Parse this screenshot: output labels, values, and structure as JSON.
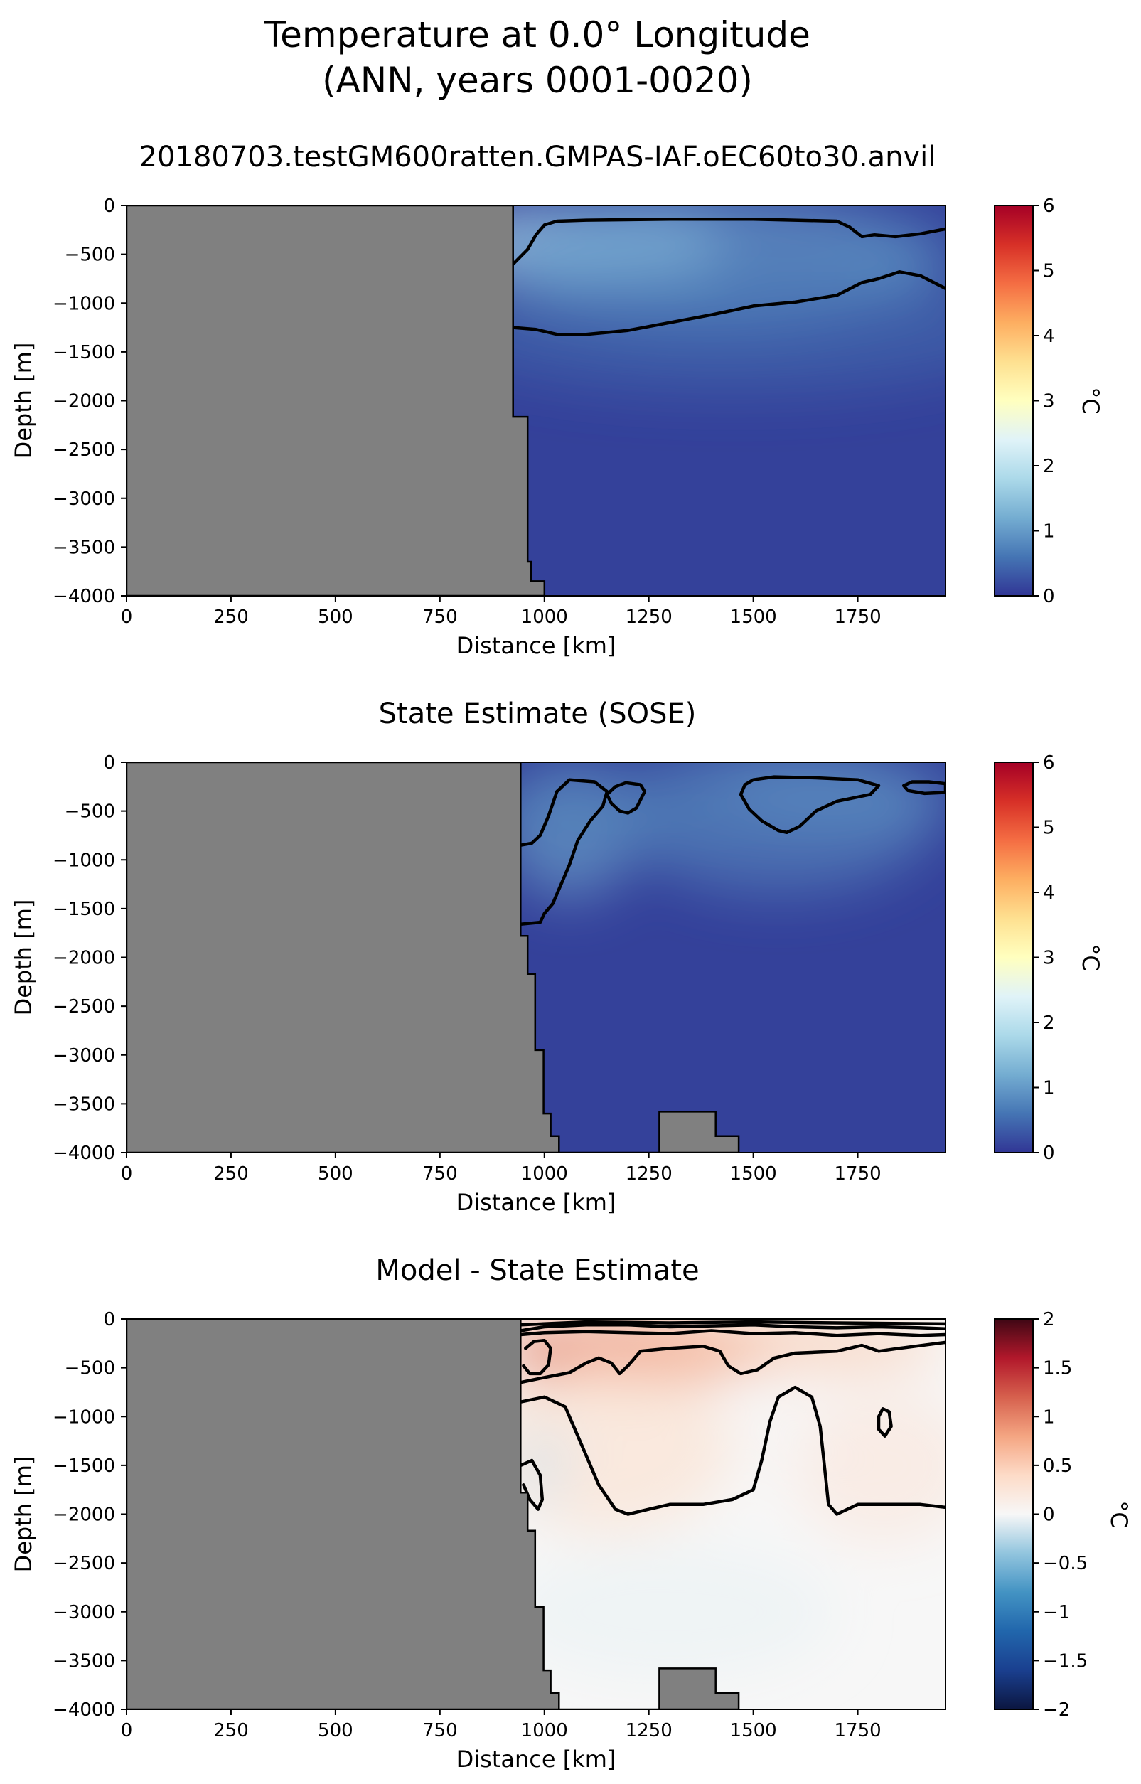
{
  "figure": {
    "title_line1": "Temperature at 0.0° Longitude",
    "title_line2": "(ANN, years 0001-0020)"
  },
  "chart_data": [
    {
      "type": "heatmap",
      "title": "20180703.testGM600ratten.GMPAS-IAF.oEC60to30.anvil",
      "xlabel": "Distance [km]",
      "ylabel": "Depth [m]",
      "xlim": [
        0,
        1960
      ],
      "ylim": [
        -4000,
        0
      ],
      "xticks": [
        0,
        250,
        500,
        750,
        1000,
        1250,
        1500,
        1750
      ],
      "yticks": [
        0,
        -500,
        -1000,
        -1500,
        -2000,
        -2500,
        -3000,
        -3500,
        -4000
      ],
      "colormap": "RdYlBu_r",
      "colorbar": {
        "label": "°C",
        "min": 0,
        "max": 6,
        "ticks": [
          0,
          1,
          2,
          3,
          4,
          5,
          6
        ]
      },
      "land_color": "#808080",
      "bathymetry": [
        [
          925,
          -600
        ],
        [
          925,
          -2165
        ],
        [
          960,
          -2165
        ],
        [
          960,
          -3650
        ],
        [
          968,
          -3650
        ],
        [
          968,
          -3850
        ],
        [
          1000,
          -3850
        ],
        [
          1000,
          -4000
        ]
      ],
      "field_blobs": [
        {
          "x": 1100,
          "y": -400,
          "rx": 330,
          "ry": 450,
          "value": 1.9,
          "opacity": 0.75
        },
        {
          "x": 1400,
          "y": -550,
          "rx": 520,
          "ry": 700,
          "value": 1.0,
          "opacity": 0.7
        },
        {
          "x": 1450,
          "y": -1300,
          "rx": 700,
          "ry": 600,
          "value": 0.6,
          "opacity": 0.5
        },
        {
          "x": 1850,
          "y": -550,
          "rx": 150,
          "ry": 400,
          "value": 0.8,
          "opacity": 0.6
        }
      ],
      "contours": [
        [
          [
            925,
            -600
          ],
          [
            960,
            -450
          ],
          [
            980,
            -300
          ],
          [
            1000,
            -200
          ],
          [
            1030,
            -160
          ],
          [
            1100,
            -150
          ],
          [
            1300,
            -140
          ],
          [
            1500,
            -140
          ],
          [
            1700,
            -160
          ],
          [
            1730,
            -220
          ],
          [
            1760,
            -320
          ],
          [
            1790,
            -300
          ],
          [
            1840,
            -320
          ],
          [
            1900,
            -290
          ],
          [
            1960,
            -240
          ]
        ],
        [
          [
            925,
            -1250
          ],
          [
            980,
            -1270
          ],
          [
            1030,
            -1320
          ],
          [
            1100,
            -1320
          ],
          [
            1200,
            -1280
          ],
          [
            1300,
            -1200
          ],
          [
            1400,
            -1120
          ],
          [
            1500,
            -1030
          ],
          [
            1600,
            -990
          ],
          [
            1700,
            -920
          ],
          [
            1760,
            -790
          ],
          [
            1800,
            -750
          ],
          [
            1850,
            -680
          ],
          [
            1900,
            -720
          ],
          [
            1960,
            -850
          ]
        ]
      ]
    },
    {
      "type": "heatmap",
      "title": "State Estimate (SOSE)",
      "xlabel": "Distance [km]",
      "ylabel": "Depth [m]",
      "xlim": [
        0,
        1960
      ],
      "ylim": [
        -4000,
        0
      ],
      "xticks": [
        0,
        250,
        500,
        750,
        1000,
        1250,
        1500,
        1750
      ],
      "yticks": [
        0,
        -500,
        -1000,
        -1500,
        -2000,
        -2500,
        -3000,
        -3500,
        -4000
      ],
      "colormap": "RdYlBu_r",
      "colorbar": {
        "label": "°C",
        "min": 0,
        "max": 6,
        "ticks": [
          0,
          1,
          2,
          3,
          4,
          5,
          6
        ]
      },
      "land_color": "#808080",
      "bathymetry": [
        [
          943,
          -1780
        ],
        [
          960,
          -1780
        ],
        [
          960,
          -2170
        ],
        [
          978,
          -2170
        ],
        [
          978,
          -2950
        ],
        [
          998,
          -2950
        ],
        [
          998,
          -3600
        ],
        [
          1015,
          -3600
        ],
        [
          1015,
          -3830
        ],
        [
          1035,
          -3830
        ],
        [
          1035,
          -4000
        ],
        [
          1275,
          -4000
        ],
        [
          1275,
          -3580
        ],
        [
          1410,
          -3580
        ],
        [
          1410,
          -3830
        ],
        [
          1465,
          -3830
        ],
        [
          1465,
          -4000
        ]
      ],
      "field_blobs": [
        {
          "x": 1060,
          "y": -700,
          "rx": 160,
          "ry": 700,
          "value": 1.2,
          "opacity": 0.6
        },
        {
          "x": 1560,
          "y": -550,
          "rx": 380,
          "ry": 800,
          "value": 0.9,
          "opacity": 0.55
        },
        {
          "x": 1150,
          "y": -500,
          "rx": 300,
          "ry": 500,
          "value": 0.7,
          "opacity": 0.45
        },
        {
          "x": 1700,
          "y": -350,
          "rx": 300,
          "ry": 350,
          "value": 1.0,
          "opacity": 0.5
        }
      ],
      "contours": [
        [
          [
            943,
            -850
          ],
          [
            970,
            -830
          ],
          [
            990,
            -750
          ],
          [
            1010,
            -550
          ],
          [
            1030,
            -300
          ],
          [
            1060,
            -180
          ],
          [
            1120,
            -200
          ],
          [
            1150,
            -300
          ],
          [
            1140,
            -450
          ],
          [
            1110,
            -600
          ],
          [
            1080,
            -800
          ],
          [
            1060,
            -1050
          ],
          [
            1040,
            -1250
          ],
          [
            1020,
            -1450
          ],
          [
            1000,
            -1550
          ],
          [
            990,
            -1640
          ],
          [
            943,
            -1660
          ]
        ],
        [
          [
            1170,
            -250
          ],
          [
            1195,
            -210
          ],
          [
            1230,
            -230
          ],
          [
            1240,
            -300
          ],
          [
            1220,
            -470
          ],
          [
            1200,
            -520
          ],
          [
            1180,
            -500
          ],
          [
            1160,
            -420
          ],
          [
            1150,
            -330
          ]
        ],
        [
          [
            1480,
            -230
          ],
          [
            1500,
            -180
          ],
          [
            1550,
            -150
          ],
          [
            1650,
            -160
          ],
          [
            1750,
            -180
          ],
          [
            1800,
            -240
          ],
          [
            1780,
            -330
          ],
          [
            1700,
            -400
          ],
          [
            1650,
            -500
          ],
          [
            1610,
            -660
          ],
          [
            1580,
            -720
          ],
          [
            1560,
            -700
          ],
          [
            1520,
            -600
          ],
          [
            1490,
            -480
          ],
          [
            1470,
            -330
          ]
        ],
        [
          [
            1860,
            -240
          ],
          [
            1880,
            -200
          ],
          [
            1920,
            -200
          ],
          [
            1960,
            -220
          ],
          [
            1960,
            -310
          ],
          [
            1910,
            -320
          ],
          [
            1870,
            -290
          ]
        ]
      ]
    },
    {
      "type": "heatmap",
      "title": "Model - State Estimate",
      "xlabel": "Distance [km]",
      "ylabel": "Depth [m]",
      "xlim": [
        0,
        1960
      ],
      "ylim": [
        -4000,
        0
      ],
      "xticks": [
        0,
        250,
        500,
        750,
        1000,
        1250,
        1500,
        1750
      ],
      "yticks": [
        0,
        -500,
        -1000,
        -1500,
        -2000,
        -2500,
        -3000,
        -3500,
        -4000
      ],
      "colormap": "RdBu_r",
      "colorbar": {
        "label": "°C",
        "min": -2.0,
        "max": 2.0,
        "ticks": [
          -2.0,
          -1.5,
          -1.0,
          -0.5,
          0.0,
          0.5,
          1.0,
          1.5,
          2.0
        ]
      },
      "land_color": "#808080",
      "bathymetry": [
        [
          943,
          -1780
        ],
        [
          960,
          -1780
        ],
        [
          960,
          -2170
        ],
        [
          978,
          -2170
        ],
        [
          978,
          -2950
        ],
        [
          998,
          -2950
        ],
        [
          998,
          -3600
        ],
        [
          1015,
          -3600
        ],
        [
          1015,
          -3830
        ],
        [
          1035,
          -3830
        ],
        [
          1035,
          -4000
        ],
        [
          1275,
          -4000
        ],
        [
          1275,
          -3580
        ],
        [
          1410,
          -3580
        ],
        [
          1410,
          -3830
        ],
        [
          1465,
          -3830
        ],
        [
          1465,
          -4000
        ]
      ],
      "field_blobs": [
        {
          "x": 1220,
          "y": -300,
          "rx": 330,
          "ry": 350,
          "value": 0.9,
          "opacity": 0.8
        },
        {
          "x": 990,
          "y": -400,
          "rx": 45,
          "ry": 200,
          "value": 1.2,
          "opacity": 0.85
        },
        {
          "x": 1150,
          "y": -1300,
          "rx": 300,
          "ry": 900,
          "value": 0.35,
          "opacity": 0.6
        },
        {
          "x": 1810,
          "y": -1500,
          "rx": 220,
          "ry": 800,
          "value": 0.3,
          "opacity": 0.5
        },
        {
          "x": 1560,
          "y": -1100,
          "rx": 110,
          "ry": 700,
          "value": 0.05,
          "opacity": 0.5
        },
        {
          "x": 1600,
          "y": -250,
          "rx": 360,
          "ry": 260,
          "value": 0.55,
          "opacity": 0.7
        },
        {
          "x": 1300,
          "y": -3000,
          "rx": 400,
          "ry": 700,
          "value": -0.05,
          "opacity": 0.6
        },
        {
          "x": 990,
          "y": -1500,
          "rx": 70,
          "ry": 400,
          "value": -0.15,
          "opacity": 0.6
        }
      ],
      "contours": [
        [
          [
            943,
            -120
          ],
          [
            1000,
            -80
          ],
          [
            1100,
            -60
          ],
          [
            1200,
            -60
          ],
          [
            1300,
            -80
          ],
          [
            1400,
            -70
          ],
          [
            1500,
            -60
          ],
          [
            1600,
            -80
          ],
          [
            1700,
            -90
          ],
          [
            1800,
            -80
          ],
          [
            1900,
            -90
          ],
          [
            1960,
            -100
          ]
        ],
        [
          [
            943,
            -160
          ],
          [
            1000,
            -140
          ],
          [
            1100,
            -130
          ],
          [
            1200,
            -140
          ],
          [
            1300,
            -150
          ],
          [
            1400,
            -120
          ],
          [
            1500,
            -150
          ],
          [
            1600,
            -140
          ],
          [
            1700,
            -170
          ],
          [
            1800,
            -150
          ],
          [
            1900,
            -170
          ],
          [
            1960,
            -160
          ]
        ],
        [
          [
            943,
            -60
          ],
          [
            1100,
            -30
          ],
          [
            1300,
            -40
          ],
          [
            1500,
            -30
          ],
          [
            1700,
            -40
          ],
          [
            1960,
            -50
          ]
        ],
        [
          [
            955,
            -300
          ],
          [
            975,
            -230
          ],
          [
            1000,
            -220
          ],
          [
            1015,
            -300
          ],
          [
            1010,
            -470
          ],
          [
            990,
            -560
          ],
          [
            965,
            -560
          ],
          [
            950,
            -480
          ]
        ],
        [
          [
            943,
            -650
          ],
          [
            1000,
            -600
          ],
          [
            1060,
            -550
          ],
          [
            1100,
            -450
          ],
          [
            1130,
            -400
          ],
          [
            1160,
            -450
          ],
          [
            1180,
            -560
          ],
          [
            1200,
            -480
          ],
          [
            1230,
            -330
          ],
          [
            1300,
            -300
          ],
          [
            1380,
            -280
          ],
          [
            1420,
            -330
          ],
          [
            1440,
            -480
          ],
          [
            1470,
            -560
          ],
          [
            1510,
            -520
          ],
          [
            1550,
            -400
          ],
          [
            1600,
            -350
          ],
          [
            1700,
            -330
          ],
          [
            1760,
            -270
          ],
          [
            1800,
            -330
          ],
          [
            1850,
            -300
          ],
          [
            1960,
            -240
          ]
        ],
        [
          [
            943,
            -850
          ],
          [
            1000,
            -800
          ],
          [
            1050,
            -900
          ],
          [
            1090,
            -1300
          ],
          [
            1130,
            -1700
          ],
          [
            1170,
            -1950
          ],
          [
            1200,
            -2000
          ],
          [
            1250,
            -1950
          ],
          [
            1300,
            -1900
          ],
          [
            1380,
            -1900
          ],
          [
            1450,
            -1850
          ],
          [
            1500,
            -1750
          ],
          [
            1520,
            -1450
          ],
          [
            1540,
            -1050
          ],
          [
            1560,
            -800
          ],
          [
            1600,
            -700
          ],
          [
            1640,
            -800
          ],
          [
            1660,
            -1100
          ],
          [
            1670,
            -1500
          ],
          [
            1680,
            -1900
          ],
          [
            1700,
            -2000
          ],
          [
            1750,
            -1900
          ],
          [
            1850,
            -1900
          ],
          [
            1900,
            -1900
          ],
          [
            1960,
            -1930
          ]
        ],
        [
          [
            943,
            -1500
          ],
          [
            970,
            -1450
          ],
          [
            990,
            -1600
          ],
          [
            995,
            -1850
          ],
          [
            985,
            -1950
          ],
          [
            965,
            -1850
          ],
          [
            950,
            -1700
          ]
        ],
        [
          [
            1810,
            -920
          ],
          [
            1825,
            -950
          ],
          [
            1830,
            -1100
          ],
          [
            1815,
            -1200
          ],
          [
            1800,
            -1130
          ],
          [
            1800,
            -1000
          ]
        ]
      ]
    }
  ]
}
